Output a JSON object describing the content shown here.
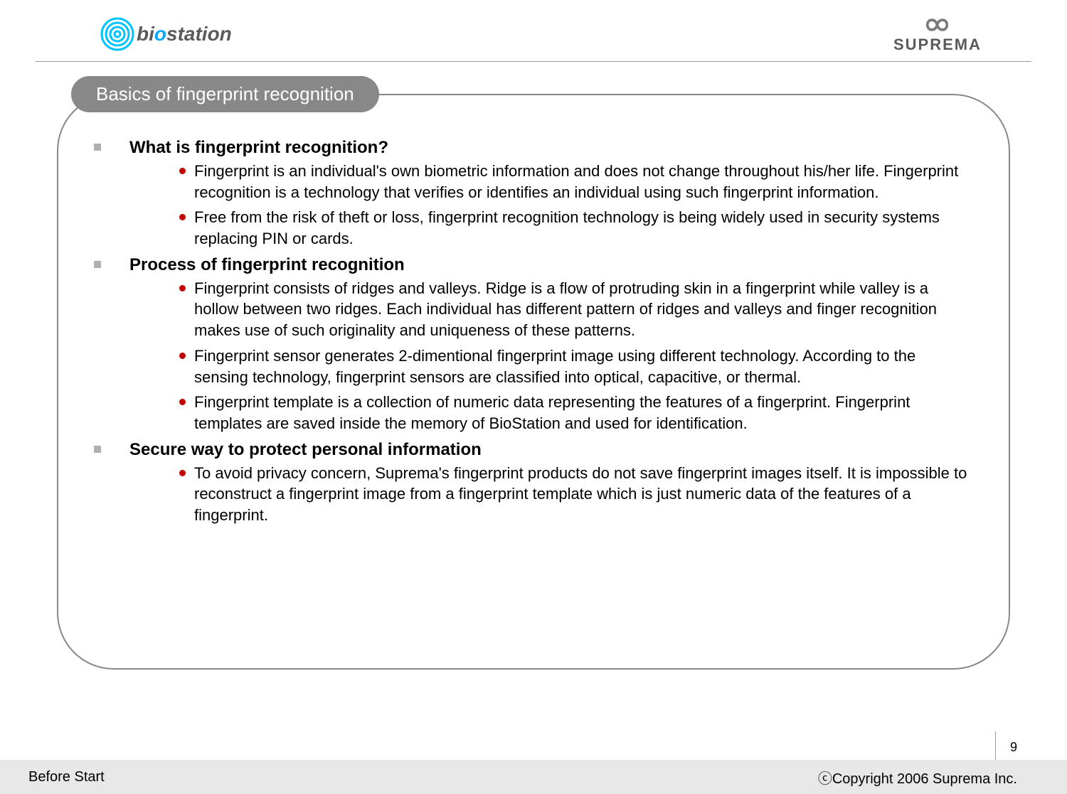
{
  "header": {
    "logo_left_text_pre": "bi",
    "logo_left_text_o": "o",
    "logo_left_text_post": "station",
    "logo_right_text": "SUPREMA"
  },
  "title": "Basics of fingerprint recognition",
  "sections": [
    {
      "heading": "What is fingerprint recognition?",
      "items": [
        "Fingerprint is an individual's own biometric information and does not change throughout his/her life. Fingerprint recognition is a technology that verifies or identifies an individual using such fingerprint information.",
        "Free from the risk of theft or loss, fingerprint recognition technology is being widely used in security systems replacing PIN or cards."
      ]
    },
    {
      "heading": "Process of fingerprint recognition",
      "items": [
        "Fingerprint consists of ridges and valleys. Ridge is a flow of protruding skin in a fingerprint while valley is a hollow between two ridges. Each individual has different pattern of ridges and valleys and finger recognition makes use of such originality and uniqueness of these patterns.",
        "Fingerprint sensor generates 2-dimentional fingerprint image using different technology. According to the sensing technology, fingerprint sensors are classified into optical, capacitive, or thermal.",
        "Fingerprint template is a collection of numeric data representing the features of a fingerprint. Fingerprint templates are saved inside the memory of BioStation and used for identification."
      ]
    },
    {
      "heading": "Secure way to protect personal information",
      "items": [
        "To avoid privacy concern, Suprema's fingerprint products do not save fingerprint images itself. It is impossible to reconstruct a fingerprint image from a fingerprint template which is just numeric data of the features of a fingerprint."
      ]
    }
  ],
  "page_number": "9",
  "footer": {
    "left": "Before Start",
    "right": "ⓒCopyright 2006 Suprema Inc."
  },
  "colors": {
    "pill_bg": "#888888",
    "pill_text": "#ffffff",
    "square_bullet": "#b0b0b0",
    "dot_bullet": "#c00000",
    "border": "#888888",
    "footer_bg": "#e8e8e8",
    "swirl_color": "#00c4ff",
    "infinity_color": "#7a7a7a"
  }
}
